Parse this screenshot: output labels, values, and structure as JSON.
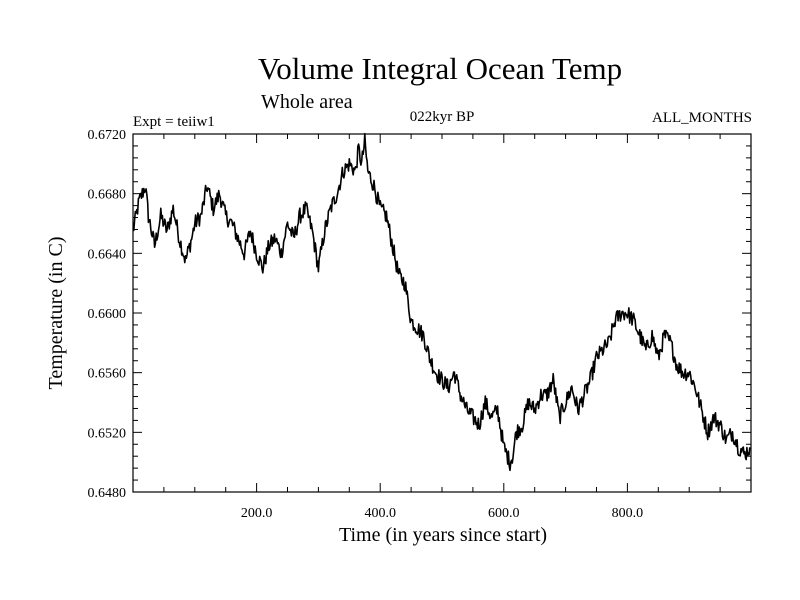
{
  "chart_data": {
    "type": "line",
    "title": "Volume Integral Ocean Temp",
    "subtitle": "Whole area",
    "annotations": {
      "experiment": "Expt = teiiw1",
      "period": "022kyr BP",
      "months": "ALL_MONTHS"
    },
    "xlabel": "Time (in years since start)",
    "ylabel": "Temperature (in C)",
    "xlim": [
      0,
      1000
    ],
    "ylim": [
      0.648,
      0.672
    ],
    "xticks": [
      {
        "value": 200,
        "label": "200.0"
      },
      {
        "value": 400,
        "label": "400.0"
      },
      {
        "value": 600,
        "label": "600.0"
      },
      {
        "value": 800,
        "label": "800.0"
      }
    ],
    "yticks": [
      {
        "value": 0.648,
        "label": "0.6480"
      },
      {
        "value": 0.652,
        "label": "0.6520"
      },
      {
        "value": 0.656,
        "label": "0.6560"
      },
      {
        "value": 0.66,
        "label": "0.6600"
      },
      {
        "value": 0.664,
        "label": "0.6640"
      },
      {
        "value": 0.668,
        "label": "0.6680"
      },
      {
        "value": 0.672,
        "label": "0.6720"
      }
    ],
    "grid": false,
    "legend": "none",
    "series": [
      {
        "color": "#000000",
        "x": [
          0,
          10,
          20,
          25,
          35,
          45,
          55,
          65,
          75,
          85,
          95,
          100,
          110,
          120,
          130,
          140,
          150,
          160,
          170,
          180,
          190,
          200,
          210,
          220,
          230,
          240,
          250,
          260,
          270,
          280,
          290,
          300,
          310,
          320,
          330,
          340,
          350,
          360,
          365,
          370,
          375,
          380,
          390,
          400,
          410,
          420,
          430,
          440,
          450,
          460,
          470,
          480,
          490,
          500,
          510,
          520,
          530,
          540,
          550,
          560,
          570,
          580,
          590,
          600,
          610,
          615,
          620,
          630,
          640,
          650,
          660,
          670,
          680,
          690,
          700,
          710,
          720,
          730,
          740,
          750,
          760,
          770,
          780,
          790,
          800,
          810,
          820,
          830,
          840,
          850,
          860,
          870,
          880,
          890,
          900,
          910,
          920,
          930,
          940,
          950,
          960,
          970,
          980,
          990,
          998
        ],
        "y": [
          0.6655,
          0.6675,
          0.6685,
          0.6665,
          0.6645,
          0.6665,
          0.6655,
          0.667,
          0.665,
          0.6635,
          0.665,
          0.666,
          0.6665,
          0.6685,
          0.667,
          0.668,
          0.6665,
          0.666,
          0.665,
          0.664,
          0.6655,
          0.664,
          0.663,
          0.6645,
          0.665,
          0.664,
          0.666,
          0.665,
          0.6665,
          0.667,
          0.6655,
          0.663,
          0.6655,
          0.667,
          0.668,
          0.6695,
          0.67,
          0.6695,
          0.671,
          0.67,
          0.6715,
          0.6695,
          0.6685,
          0.667,
          0.6665,
          0.6645,
          0.6625,
          0.662,
          0.6595,
          0.659,
          0.6585,
          0.657,
          0.656,
          0.6555,
          0.655,
          0.656,
          0.6545,
          0.6535,
          0.653,
          0.6525,
          0.654,
          0.653,
          0.6535,
          0.651,
          0.65,
          0.6505,
          0.652,
          0.6525,
          0.654,
          0.6535,
          0.6545,
          0.6545,
          0.6555,
          0.653,
          0.654,
          0.655,
          0.6535,
          0.6545,
          0.6555,
          0.657,
          0.6575,
          0.658,
          0.6595,
          0.66,
          0.66,
          0.6595,
          0.6585,
          0.6575,
          0.6585,
          0.657,
          0.6585,
          0.658,
          0.6565,
          0.656,
          0.656,
          0.655,
          0.6535,
          0.652,
          0.653,
          0.6525,
          0.6515,
          0.652,
          0.651,
          0.6505,
          0.651
        ]
      }
    ]
  }
}
